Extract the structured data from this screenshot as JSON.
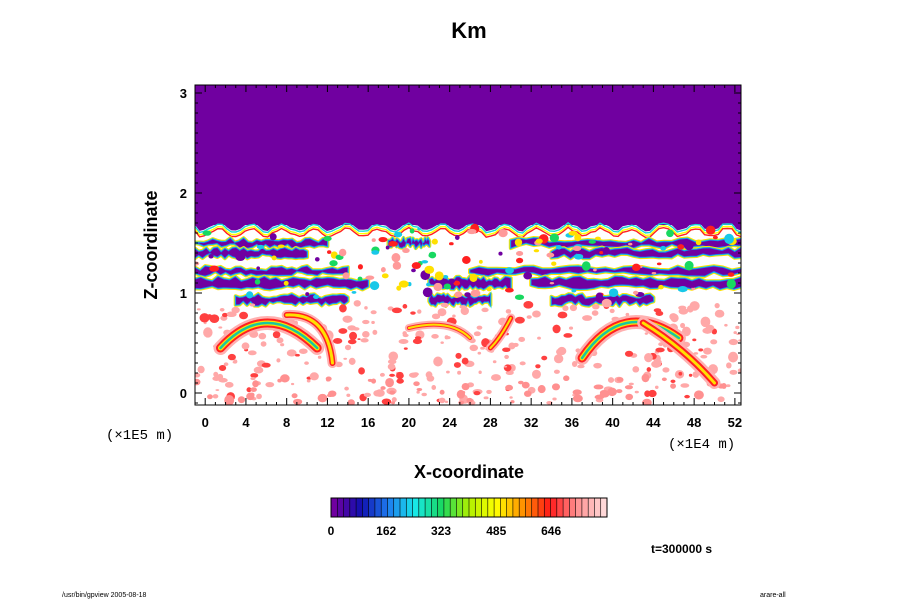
{
  "chart_data": {
    "type": "heatmap",
    "title": "Km",
    "xlabel": "X-coordinate",
    "ylabel": "Z-coordinate",
    "x_ticks": [
      "0",
      "4",
      "8",
      "12",
      "16",
      "20",
      "24",
      "28",
      "32",
      "36",
      "40",
      "44",
      "48",
      "52"
    ],
    "xlim": [
      -1,
      52.6
    ],
    "x_unit": "(×1E4 m)",
    "y_ticks": [
      "0",
      "1",
      "2",
      "3"
    ],
    "ylim": [
      -0.12,
      3.08
    ],
    "y_unit": "(×1E5 m)",
    "colorbar": {
      "ticks": [
        "0",
        "162",
        "323",
        "485",
        "646"
      ],
      "tick_values": [
        0,
        162,
        323,
        485,
        646
      ],
      "range": [
        0,
        810
      ],
      "colors": [
        "#7000a0",
        "#1010b0",
        "#1e7bf0",
        "#18e8e8",
        "#18d860",
        "#b0f000",
        "#ffff00",
        "#ff9000",
        "#ff1818",
        "#ff9090",
        "#ffd8d8"
      ]
    },
    "field_regions": {
      "background_color": "#7000a0",
      "upper_uniform_top": 3.08,
      "upper_uniform_bottom": 1.68,
      "layered_band_bottom": 0.9,
      "low_activity_color": "#ffffff"
    }
  },
  "annotations": {
    "time": "t=300000 s",
    "footer_left": "/usr/bin/gpview 2005-08-18",
    "footer_right": "arare-all"
  },
  "colors": {
    "purple": "#7000a0",
    "red": "#ff2020",
    "pink": "#ff9a9a"
  }
}
